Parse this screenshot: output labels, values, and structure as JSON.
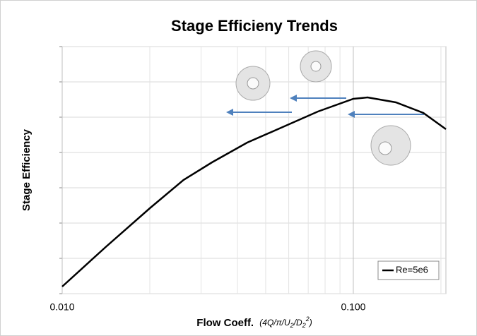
{
  "chart_data": {
    "type": "line",
    "title": "Stage Efficieny Trends",
    "xlabel": "Flow Coeff.",
    "xlabel_note": [
      "(4Q/π/U",
      "2",
      "/D",
      "2",
      "2",
      ")"
    ],
    "ylabel": "Stage Efficiency",
    "log_x": true,
    "xlim": [
      0.01,
      0.208
    ],
    "ylim": [
      0,
      7
    ],
    "xticks": [
      {
        "value": 0.01,
        "label": "0.010"
      },
      {
        "value": 0.1,
        "label": "0.100"
      }
    ],
    "xgrid": [
      0.02,
      0.03,
      0.04,
      0.05,
      0.06,
      0.07,
      0.08,
      0.09,
      0.2
    ],
    "yticks": [
      0,
      1,
      2,
      3,
      4,
      5,
      6,
      7
    ],
    "legend": "lower right",
    "x": [
      0.01,
      0.0141,
      0.02,
      0.0261,
      0.0327,
      0.0432,
      0.0572,
      0.0756,
      0.1,
      0.112,
      0.14,
      0.174,
      0.208
    ],
    "series": [
      {
        "name": "Re=5e6",
        "color": "#000000",
        "values": [
          0.2,
          1.32,
          2.42,
          3.22,
          3.72,
          4.28,
          4.72,
          5.16,
          5.52,
          5.56,
          5.42,
          5.12,
          4.66
        ]
      }
    ]
  }
}
